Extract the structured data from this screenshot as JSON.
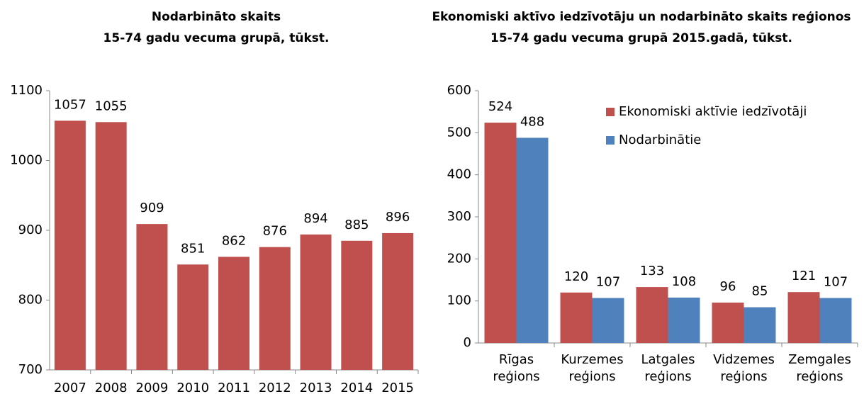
{
  "chart_data": [
    {
      "type": "bar",
      "title": "Nodarbināto skaits",
      "subtitle": "15-74 gadu vecuma grupā, tūkst.",
      "categories": [
        "2007",
        "2008",
        "2009",
        "2010",
        "2011",
        "2012",
        "2013",
        "2014",
        "2015"
      ],
      "values": [
        1057,
        1055,
        909,
        851,
        862,
        876,
        894,
        885,
        896
      ],
      "color": "#c0504d",
      "ylim": [
        700,
        1100
      ],
      "yticks": [
        700,
        800,
        900,
        1000,
        1100
      ]
    },
    {
      "type": "grouped_bar",
      "title": "Ekonomiski aktīvo iedzīvotāju un nodarbināto skaits reģionos",
      "subtitle": "15-74 gadu vecuma grupā 2015.gadā, tūkst.",
      "categories": [
        "Rīgas reģions",
        "Kurzemes reģions",
        "Latgales reģions",
        "Vidzemes reģions",
        "Zemgales reģions"
      ],
      "series": [
        {
          "name": "Ekonomiski aktīvie iedzīvotāji",
          "color": "#c0504d",
          "values": [
            524,
            120,
            133,
            96,
            121
          ]
        },
        {
          "name": "Nodarbinātie",
          "color": "#4f81bd",
          "values": [
            488,
            107,
            108,
            85,
            107
          ]
        }
      ],
      "ylim": [
        0,
        600
      ],
      "yticks": [
        0,
        100,
        200,
        300,
        400,
        500,
        600
      ],
      "legend": "top-right"
    }
  ]
}
